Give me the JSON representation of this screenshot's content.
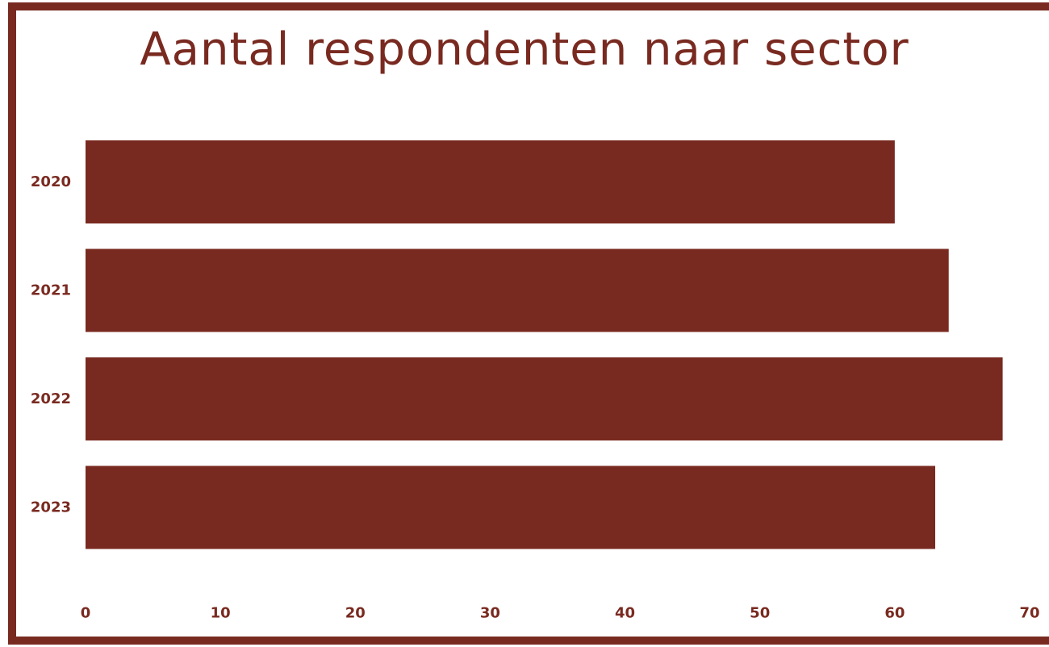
{
  "chart_data": {
    "type": "bar",
    "orientation": "horizontal",
    "title": "Aantal respondenten naar sector",
    "categories": [
      "2020",
      "2021",
      "2022",
      "2023"
    ],
    "values": [
      60,
      64,
      68,
      63
    ],
    "xlim": [
      0,
      70
    ],
    "x_ticks": [
      "0",
      "10",
      "20",
      "30",
      "40",
      "50",
      "60",
      "70"
    ],
    "xlabel": "",
    "ylabel": "",
    "grid": false,
    "legend": "none",
    "bar_color": "#792a20",
    "text_color": "#792a20"
  }
}
